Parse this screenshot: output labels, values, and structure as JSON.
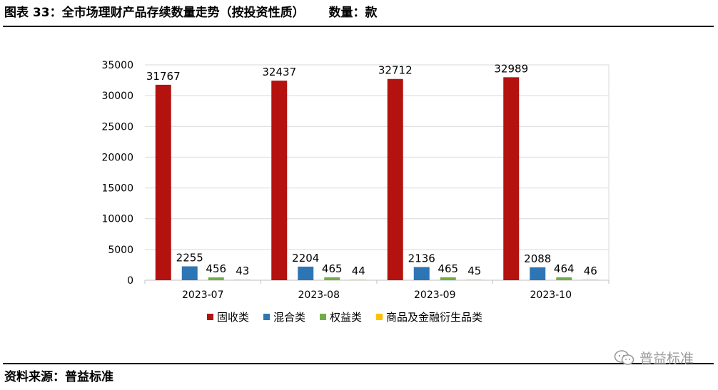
{
  "header": {
    "title": "图表 33：全市场理财产品存续数量走势（按投资性质）",
    "unit": "数量：款"
  },
  "footer": {
    "source": "资料来源：普益标准",
    "watermark": "普益标准"
  },
  "chart_data": {
    "type": "bar",
    "categories": [
      "2023-07",
      "2023-08",
      "2023-09",
      "2023-10"
    ],
    "series": [
      {
        "name": "固收类",
        "values": [
          31767,
          32437,
          32712,
          32989
        ],
        "color": "#B3120F"
      },
      {
        "name": "混合类",
        "values": [
          2255,
          2204,
          2136,
          2088
        ],
        "color": "#2E75B6"
      },
      {
        "name": "权益类",
        "values": [
          456,
          465,
          465,
          464
        ],
        "color": "#70AD47"
      },
      {
        "name": "商品及金融衍生品类",
        "values": [
          43,
          44,
          45,
          46
        ],
        "color": "#FFC000"
      }
    ],
    "ylim": [
      0,
      35000
    ],
    "yticks": [
      0,
      5000,
      10000,
      15000,
      20000,
      25000,
      30000,
      35000
    ],
    "grid": true,
    "legend_position": "bottom",
    "data_labels": true
  }
}
